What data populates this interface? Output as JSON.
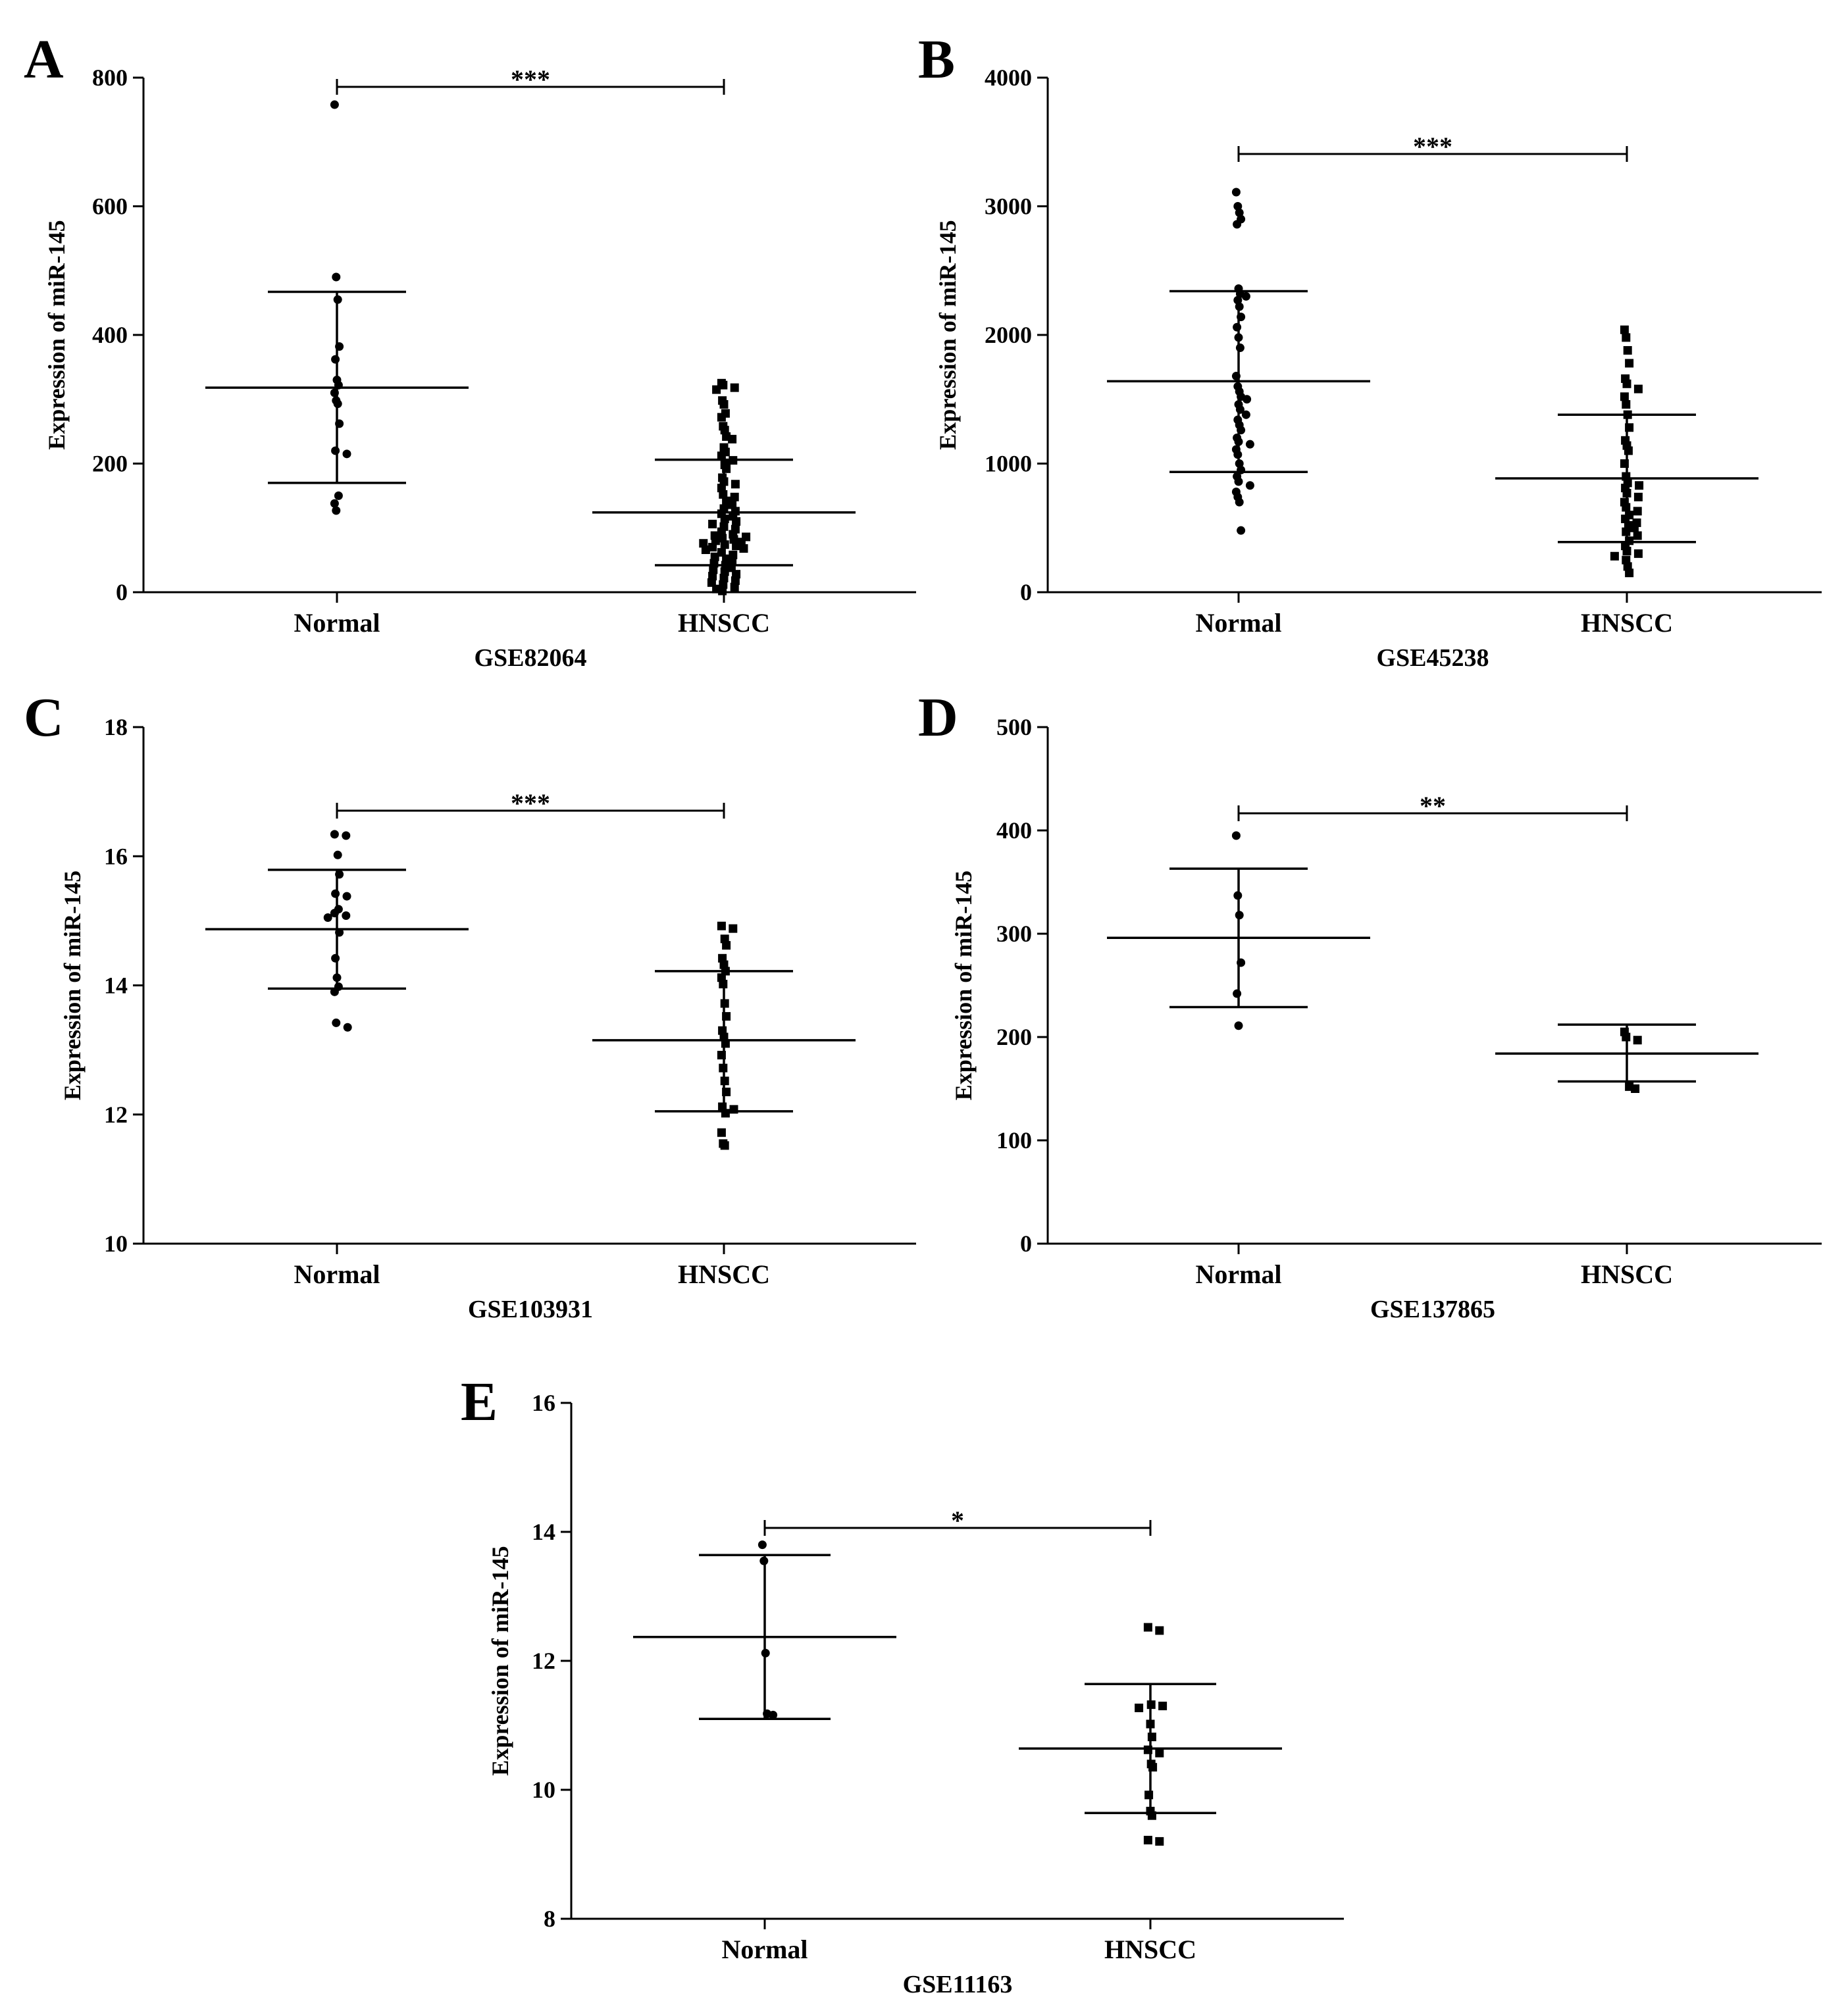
{
  "chart_data": [
    {
      "panel": "A",
      "type": "scatter",
      "dataset": "GSE82064",
      "ylabel": "Expression of miR-145",
      "categories": [
        "Normal",
        "HNSCC"
      ],
      "ylim": [
        0,
        800
      ],
      "yticks": [
        0,
        200,
        400,
        600,
        800
      ],
      "significance": "***",
      "groups": [
        {
          "name": "Normal",
          "marker": "circle",
          "mean": 318,
          "sd_low": 170,
          "sd_high": 467,
          "points": [
            758,
            490,
            455,
            382,
            362,
            330,
            322,
            310,
            298,
            293,
            262,
            220,
            215,
            150,
            138,
            127
          ]
        },
        {
          "name": "HNSCC",
          "marker": "square",
          "mean": 124,
          "sd_low": 42,
          "sd_high": 206,
          "points": [
            325,
            322,
            318,
            315,
            298,
            292,
            278,
            272,
            258,
            252,
            242,
            238,
            225,
            218,
            212,
            205,
            198,
            192,
            178,
            172,
            168,
            162,
            152,
            148,
            142,
            136,
            130,
            126,
            122,
            118,
            114,
            110,
            106,
            102,
            98,
            94,
            90,
            88,
            86,
            84,
            82,
            80,
            78,
            76,
            74,
            72,
            70,
            68,
            66,
            62,
            58,
            55,
            52,
            48,
            45,
            42,
            38,
            35,
            32,
            28,
            25,
            22,
            18,
            15,
            12,
            8,
            5,
            2
          ]
        }
      ]
    },
    {
      "panel": "B",
      "type": "scatter",
      "dataset": "GSE45238",
      "ylabel": "Expression of miR-145",
      "categories": [
        "Normal",
        "HNSCC"
      ],
      "ylim": [
        0,
        4000
      ],
      "yticks": [
        0,
        1000,
        2000,
        3000,
        4000
      ],
      "significance": "***",
      "groups": [
        {
          "name": "Normal",
          "marker": "circle",
          "mean": 1640,
          "sd_low": 935,
          "sd_high": 2340,
          "points": [
            3110,
            3000,
            2950,
            2900,
            2860,
            2360,
            2320,
            2300,
            2270,
            2220,
            2140,
            2060,
            1980,
            1900,
            1680,
            1600,
            1560,
            1520,
            1500,
            1460,
            1420,
            1380,
            1340,
            1300,
            1260,
            1200,
            1170,
            1150,
            1110,
            1070,
            1000,
            950,
            900,
            860,
            830,
            780,
            740,
            700,
            480
          ]
        },
        {
          "name": "HNSCC",
          "marker": "square",
          "mean": 885,
          "sd_low": 390,
          "sd_high": 1380,
          "points": [
            2040,
            1980,
            1880,
            1780,
            1660,
            1620,
            1580,
            1520,
            1460,
            1380,
            1280,
            1180,
            1140,
            1100,
            1000,
            900,
            850,
            830,
            810,
            770,
            740,
            700,
            660,
            630,
            600,
            570,
            540,
            520,
            500,
            470,
            440,
            400,
            360,
            320,
            300,
            280,
            250,
            200,
            150
          ]
        }
      ]
    },
    {
      "panel": "C",
      "type": "scatter",
      "dataset": "GSE103931",
      "ylabel": "Expression of miR-145",
      "categories": [
        "Normal",
        "HNSCC"
      ],
      "ylim": [
        10,
        18
      ],
      "yticks": [
        10,
        12,
        14,
        16,
        18
      ],
      "significance": "***",
      "groups": [
        {
          "name": "Normal",
          "marker": "circle",
          "mean": 14.87,
          "sd_low": 13.95,
          "sd_high": 15.79,
          "points": [
            16.34,
            16.32,
            16.02,
            15.72,
            15.42,
            15.38,
            15.18,
            15.12,
            15.08,
            15.05,
            14.82,
            14.42,
            14.12,
            13.98,
            13.9,
            13.42,
            13.35
          ]
        },
        {
          "name": "HNSCC",
          "marker": "square",
          "mean": 13.15,
          "sd_low": 12.05,
          "sd_high": 14.22,
          "points": [
            14.92,
            14.88,
            14.72,
            14.62,
            14.42,
            14.32,
            14.22,
            14.12,
            14.02,
            13.72,
            13.52,
            13.3,
            13.2,
            13.1,
            12.92,
            12.72,
            12.52,
            12.35,
            12.12,
            12.08,
            12.02,
            11.72,
            11.55,
            11.52
          ]
        }
      ]
    },
    {
      "panel": "D",
      "type": "scatter",
      "dataset": "GSE137865",
      "ylabel": "Expression of miR-145",
      "categories": [
        "Normal",
        "HNSCC"
      ],
      "ylim": [
        0,
        500
      ],
      "yticks": [
        0,
        100,
        200,
        300,
        400,
        500
      ],
      "significance": "**",
      "groups": [
        {
          "name": "Normal",
          "marker": "circle",
          "mean": 296,
          "sd_low": 229,
          "sd_high": 363,
          "points": [
            395,
            337,
            318,
            272,
            242,
            211
          ]
        },
        {
          "name": "HNSCC",
          "marker": "square",
          "mean": 184,
          "sd_low": 157,
          "sd_high": 212,
          "points": [
            205,
            200,
            197,
            152,
            150
          ]
        }
      ]
    },
    {
      "panel": "E",
      "type": "scatter",
      "dataset": "GSE11163",
      "ylabel": "Expression of miR-145",
      "categories": [
        "Normal",
        "HNSCC"
      ],
      "ylim": [
        8,
        16
      ],
      "yticks": [
        8,
        10,
        12,
        14,
        16
      ],
      "significance": "*",
      "groups": [
        {
          "name": "Normal",
          "marker": "circle",
          "mean": 12.37,
          "sd_low": 11.1,
          "sd_high": 13.64,
          "points": [
            13.8,
            13.55,
            12.12,
            11.18,
            11.16
          ]
        },
        {
          "name": "HNSCC",
          "marker": "square",
          "mean": 10.64,
          "sd_low": 9.64,
          "sd_high": 11.64,
          "points": [
            12.52,
            12.47,
            11.32,
            11.3,
            11.27,
            11.02,
            10.82,
            10.62,
            10.57,
            10.4,
            10.35,
            9.92,
            9.67,
            9.6,
            9.22,
            9.2
          ]
        }
      ]
    }
  ]
}
